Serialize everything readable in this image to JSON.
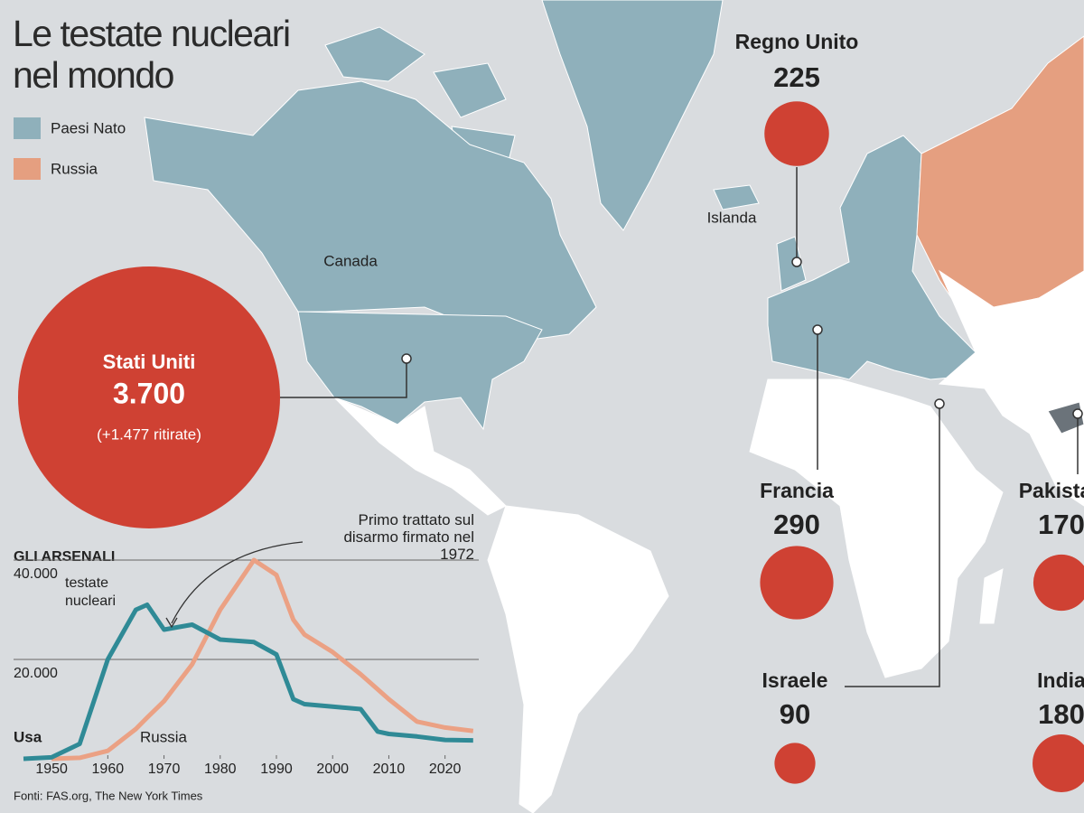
{
  "title": "Le testate nucleari nel mondo",
  "legend": [
    {
      "label": "Paesi Nato",
      "color": "#8fb0bb"
    },
    {
      "label": "Russia",
      "color": "#e59f80"
    }
  ],
  "map_labels": [
    "Canada",
    "Islanda"
  ],
  "bubble_color": "#cf4133",
  "countries": [
    {
      "name": "Stati Uniti",
      "value": 3700,
      "value_label": "3.700",
      "note": "(+1.477 ritirate)"
    },
    {
      "name": "Regno Unito",
      "value": 225
    },
    {
      "name": "Francia",
      "value": 290
    },
    {
      "name": "Israele",
      "value": 90
    },
    {
      "name": "Pakistan",
      "value": 170
    },
    {
      "name": "India",
      "value": 180
    }
  ],
  "chart_data": {
    "type": "line",
    "heading": "GLI ARSENALI",
    "ylabel": "testate nucleari",
    "annotation": "Primo trattato sul disarmo firmato nel 1972",
    "x": [
      1945,
      1950,
      1955,
      1960,
      1965,
      1967,
      1970,
      1975,
      1980,
      1986,
      1990,
      1993,
      1995,
      2000,
      2005,
      2008,
      2010,
      2015,
      2020,
      2025
    ],
    "series": [
      {
        "name": "Usa",
        "color": "#2f8a96",
        "values": [
          2,
          300,
          3000,
          20000,
          30000,
          31000,
          26000,
          27000,
          24000,
          23500,
          21000,
          12000,
          11000,
          10500,
          10000,
          5500,
          5000,
          4500,
          3800,
          3700
        ]
      },
      {
        "name": "Russia",
        "color": "#eba184",
        "values": [
          null,
          5,
          200,
          1600,
          6000,
          8300,
          11600,
          19000,
          30000,
          40000,
          37000,
          28000,
          25000,
          21500,
          17000,
          14000,
          12000,
          7500,
          6300,
          5600
        ]
      }
    ],
    "xlim": [
      1945,
      2026
    ],
    "ylim": [
      0,
      42000
    ],
    "xticks": [
      1950,
      1960,
      1970,
      1980,
      1990,
      2000,
      2010,
      2020
    ],
    "yticks": [
      {
        "value": 20000,
        "label": "20.000"
      },
      {
        "value": 40000,
        "label": "40.000"
      }
    ],
    "grid": true
  },
  "source": "Fonti: FAS.org, The New York Times"
}
